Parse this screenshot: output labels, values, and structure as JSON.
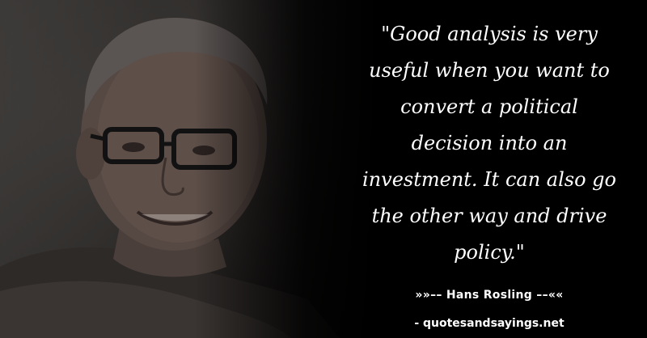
{
  "quote": {
    "lines": [
      "\"Good analysis is very",
      "useful when you want to",
      "convert a political",
      "decision into an",
      "investment. It can also go",
      "the other way and drive",
      "policy.\""
    ]
  },
  "author": {
    "text": "»»–– Hans Rosling ––««"
  },
  "source": {
    "text": "- quotesandsayings.net"
  },
  "photo": {
    "subject": "portrait-photo"
  }
}
